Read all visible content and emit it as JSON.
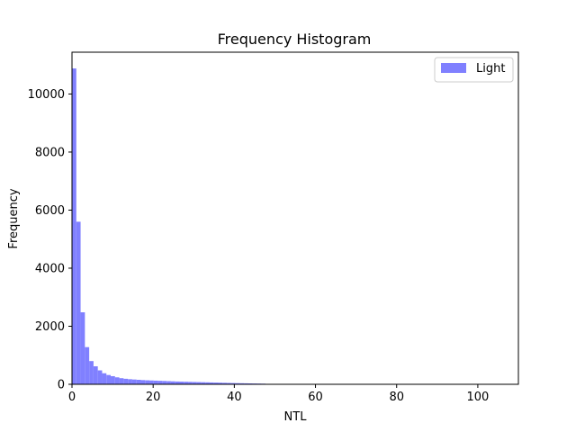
{
  "chart_data": {
    "type": "bar",
    "title": "Frequency Histogram",
    "xlabel": "NTL",
    "ylabel": "Frequency",
    "xlim": [
      0,
      110
    ],
    "ylim": [
      0,
      11440
    ],
    "xticks": [
      0,
      20,
      40,
      60,
      80,
      100
    ],
    "yticks": [
      0,
      2000,
      4000,
      6000,
      8000,
      10000
    ],
    "grid": false,
    "legend_position": "top-right",
    "series": [
      {
        "name": "Light",
        "color": "#8080ff",
        "bin_width": 1.06,
        "bin_start": 0,
        "values": [
          10880,
          5600,
          2480,
          1280,
          800,
          620,
          480,
          380,
          320,
          280,
          240,
          210,
          190,
          175,
          165,
          155,
          145,
          138,
          132,
          126,
          120,
          114,
          108,
          102,
          96,
          92,
          88,
          84,
          80,
          76,
          72,
          68,
          64,
          60,
          56,
          52,
          48,
          44,
          40,
          37,
          34,
          31,
          28,
          25,
          22
        ]
      }
    ]
  }
}
